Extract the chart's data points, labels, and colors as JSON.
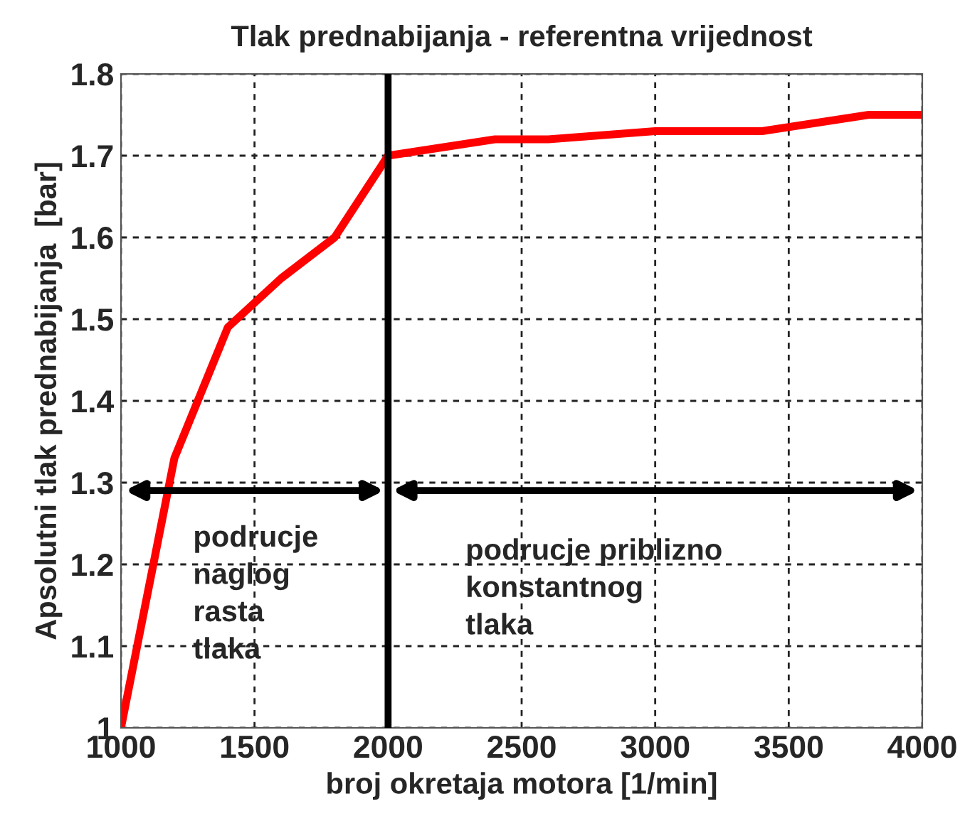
{
  "chart_data": {
    "type": "line",
    "title": "Tlak prednabijanja - referentna vrijednost",
    "xlabel": "broj okretaja motora [1/min]",
    "ylabel": "Apsolutni tlak prednabijanja  [bar]",
    "x": [
      1000,
      1200,
      1400,
      1600,
      1800,
      2000,
      2200,
      2400,
      2600,
      3000,
      3400,
      3800,
      4000
    ],
    "series": [
      {
        "color": "#ff0000",
        "values": [
          1.0,
          1.33,
          1.49,
          1.55,
          1.6,
          1.7,
          1.71,
          1.72,
          1.72,
          1.73,
          1.73,
          1.75,
          1.75
        ]
      }
    ],
    "xlim": [
      1000,
      4000
    ],
    "ylim": [
      1.0,
      1.8
    ],
    "xticks": [
      1000,
      1500,
      2000,
      2500,
      3000,
      3500,
      4000
    ],
    "yticks": [
      1,
      1.1,
      1.2,
      1.3,
      1.4,
      1.5,
      1.6,
      1.7,
      1.8
    ],
    "ref_lines": [
      {
        "axis": "x",
        "value": 2000,
        "color": "#000000",
        "line_style": "solid"
      }
    ],
    "annotations": [
      "podrucje\nnaglog\nrasta\ntlaka",
      "podrucje priblizno\nkonstantnog\ntlaka"
    ],
    "grid": true,
    "legend": false,
    "marker": "none",
    "line_style": "solid"
  }
}
